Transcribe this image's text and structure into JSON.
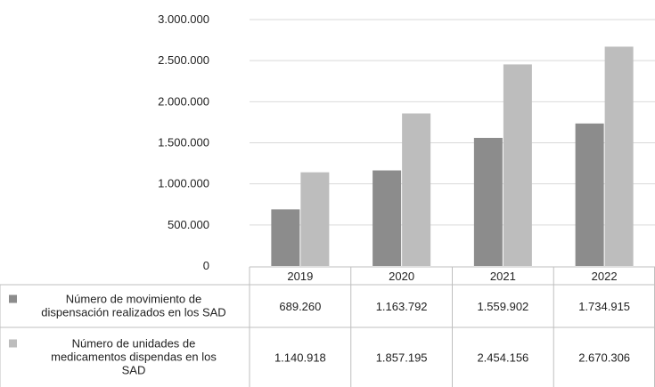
{
  "chart_data": {
    "type": "bar",
    "title": "",
    "xlabel": "",
    "ylabel": "",
    "categories": [
      "2019",
      "2020",
      "2021",
      "2022"
    ],
    "ylim": [
      0,
      3000000
    ],
    "yticks": [
      0,
      500000,
      1000000,
      1500000,
      2000000,
      2500000,
      3000000
    ],
    "ytick_labels": [
      "0",
      "500.000",
      "1.000.000",
      "1.500.000",
      "2.000.000",
      "2.500.000",
      "3.000.000"
    ],
    "grid": true,
    "legend_placement": "data-table",
    "series": [
      {
        "name": "Número de movimiento de dispensación realizados en los SAD",
        "legend_lines": [
          "Número de movimiento de",
          "dispensación realizados en los SAD"
        ],
        "color": "#8c8c8c",
        "values": [
          689260,
          1163792,
          1559902,
          1734915
        ],
        "value_labels": [
          "689.260",
          "1.163.792",
          "1.559.902",
          "1.734.915"
        ]
      },
      {
        "name": "Número de unidades de medicamentos dispendas en los SAD",
        "legend_lines": [
          "Número de unidades de",
          "medicamentos dispendas en los",
          "SAD"
        ],
        "color": "#bdbdbd",
        "values": [
          1140918,
          1857195,
          2454156,
          2670306
        ],
        "value_labels": [
          "1.140.918",
          "1.857.195",
          "2.454.156",
          "2.670.306"
        ]
      }
    ]
  }
}
